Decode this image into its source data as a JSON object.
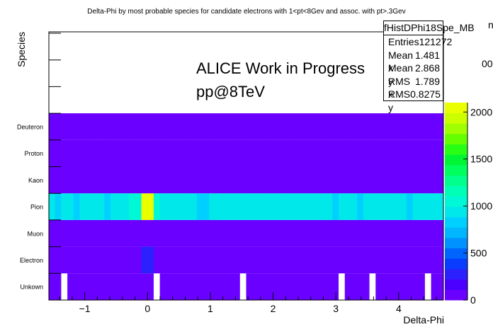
{
  "chart_data": {
    "type": "heatmap",
    "title": "Delta-Phi by most probable species for candidate electrons with 1<pt<8Gev and assoc. with pt>.3Gev",
    "xlabel": "Delta-Phi",
    "ylabel": "Species",
    "xlim": [
      -1.5708,
      4.7124
    ],
    "x_ticks": [
      "−1",
      "0",
      "1",
      "2",
      "3",
      "4"
    ],
    "y_categories": [
      "Unkown",
      "Electron",
      "Muon",
      "Pion",
      "Kaon",
      "Proton",
      "Deuteron"
    ],
    "n_xbins": 64,
    "z_range": [
      0,
      2100
    ],
    "z_ticks": [
      "0",
      "500",
      "1000",
      "1500",
      "2000"
    ],
    "colorbar_clipped_label": "00",
    "clipped_label_right": "n",
    "palette": [
      "#6a00ff",
      "#4b00ff",
      "#2d20ff",
      "#0a3cff",
      "#0064ff",
      "#0092ff",
      "#00b6ff",
      "#00d0ff",
      "#00e8ea",
      "#00f8d6",
      "#00ffb6",
      "#00ff8c",
      "#00ff5c",
      "#00f534",
      "#28ff14",
      "#64ff00",
      "#a0ff00",
      "#ccff00",
      "#eaff00"
    ],
    "rows": [
      {
        "species": "Unkown",
        "base": 8,
        "spikes": [
          {
            "x": -1.32,
            "z": 0
          },
          {
            "x": 0.13,
            "z": 0
          },
          {
            "x": 1.5,
            "z": 0
          },
          {
            "x": 3.1,
            "z": 0
          },
          {
            "x": 3.55,
            "z": 0
          },
          {
            "x": 4.45,
            "z": 0
          }
        ]
      },
      {
        "species": "Electron",
        "base": 40,
        "spikes": [
          {
            "x": -0.08,
            "z": 280
          },
          {
            "x": 0.02,
            "z": 320
          }
        ]
      },
      {
        "species": "Muon",
        "base": 15,
        "spikes": []
      },
      {
        "species": "Pion",
        "base": 960,
        "spikes": [
          {
            "x": -1.42,
            "z": 870
          },
          {
            "x": -1.27,
            "z": 900
          },
          {
            "x": -1.17,
            "z": 870
          },
          {
            "x": -0.93,
            "z": 900
          },
          {
            "x": -0.63,
            "z": 880
          },
          {
            "x": -0.23,
            "z": 1100
          },
          {
            "x": -0.13,
            "z": 1020
          },
          {
            "x": -0.03,
            "z": 2060
          },
          {
            "x": 0.07,
            "z": 2020
          },
          {
            "x": 0.17,
            "z": 1050
          },
          {
            "x": 0.8,
            "z": 880
          },
          {
            "x": 0.9,
            "z": 880
          },
          {
            "x": 1.75,
            "z": 890
          },
          {
            "x": 2.55,
            "z": 885
          },
          {
            "x": 2.95,
            "z": 880
          },
          {
            "x": 3.35,
            "z": 880
          },
          {
            "x": 3.75,
            "z": 885
          },
          {
            "x": 4.15,
            "z": 880
          },
          {
            "x": 4.55,
            "z": 890
          }
        ]
      },
      {
        "species": "Kaon",
        "base": 12,
        "spikes": []
      },
      {
        "species": "Proton",
        "base": 10,
        "spikes": []
      },
      {
        "species": "Deuteron",
        "base": 8,
        "spikes": []
      }
    ]
  },
  "annotation": {
    "line1": "ALICE Work in Progress",
    "line2": "pp@8TeV"
  },
  "stats_box": {
    "title": "fHistDPhi18Spe_MB",
    "rows": [
      {
        "label": "Entries",
        "value": "121272"
      },
      {
        "label": "Mean x",
        "value": "1.481"
      },
      {
        "label": "Mean y",
        "value": "2.868"
      },
      {
        "label": "RMS x",
        "value": "1.789"
      },
      {
        "label": "RMS y",
        "value": "0.8275"
      }
    ]
  }
}
